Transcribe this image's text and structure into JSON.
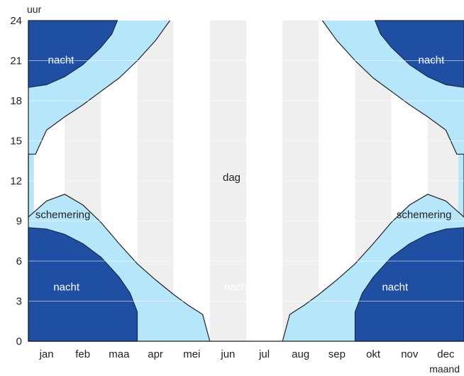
{
  "chart_data": {
    "type": "area",
    "xlabel": "maand",
    "ylabel": "uur",
    "categories": [
      "jan",
      "feb",
      "maa",
      "apr",
      "mei",
      "jun",
      "jul",
      "aug",
      "sep",
      "okt",
      "nov",
      "dec"
    ],
    "yticks": [
      "0",
      "3",
      "6",
      "9",
      "12",
      "15",
      "18",
      "21",
      "24"
    ],
    "ylim": [
      0,
      24
    ],
    "grid": "alternating light grey month columns, horizontal lines every 3 hours",
    "x_unit": "month index (0 = start of jan, 12 = end of dec)",
    "regions": [
      {
        "name": "nacht",
        "label": "nacht",
        "color": "#1f4fa3",
        "morning_end": [
          [
            0.0,
            8.5
          ],
          [
            0.5,
            8.5
          ],
          [
            1.0,
            8.2
          ],
          [
            1.5,
            7.5
          ],
          [
            2.0,
            6.3
          ],
          [
            2.5,
            4.5
          ],
          [
            2.8,
            3.2
          ],
          [
            3.0,
            2.0
          ],
          [
            3.1,
            0.0
          ]
        ],
        "evening_start": [
          [
            0.0,
            19.0
          ],
          [
            0.5,
            19.2
          ],
          [
            1.0,
            19.7
          ],
          [
            1.5,
            20.6
          ],
          [
            2.0,
            21.8
          ],
          [
            2.3,
            22.8
          ],
          [
            2.55,
            24.0
          ]
        ]
      },
      {
        "name": "schemering",
        "label": "schemering",
        "color": "#b6e6fa",
        "color_alt": "#a3d6ec",
        "morning_end": [
          [
            0.0,
            9.5
          ],
          [
            0.5,
            10.2
          ],
          [
            1.0,
            11.3
          ],
          [
            1.5,
            12.4
          ],
          [
            2.0,
            13.5
          ],
          [
            2.5,
            14.5
          ],
          [
            3.0,
            15.3
          ],
          [
            3.5,
            16.2
          ],
          [
            4.0,
            17.5
          ],
          [
            4.5,
            20.5
          ],
          [
            5.0,
            24.0
          ]
        ],
        "evening_start": [
          [
            0.0,
            14.0
          ],
          [
            0.5,
            15.5
          ],
          [
            1.0,
            16.4
          ],
          [
            1.5,
            17.2
          ],
          [
            2.0,
            18.0
          ],
          [
            2.5,
            19.0
          ],
          [
            3.0,
            20.2
          ],
          [
            3.5,
            21.5
          ],
          [
            4.0,
            23.0
          ],
          [
            4.3,
            24.0
          ]
        ]
      },
      {
        "name": "dag",
        "label": "dag",
        "color": "#ffffff",
        "midnight_sun_span": [
          5.0,
          7.0
        ]
      }
    ],
    "nacht_dip": [
      [
        3.0,
        2.5
      ],
      [
        3.5,
        4.5
      ],
      [
        4.0,
        4.0
      ],
      [
        4.5,
        2.0
      ],
      [
        4.85,
        0.0
      ]
    ],
    "labels": {
      "nacht_topleft": "nacht",
      "nacht_topright": "nacht",
      "nacht_bottomleft": "nacht",
      "nacht_bottomright": "nacht",
      "nacht_center": "nacht",
      "dag": "dag",
      "schemering_left": "schemering",
      "schemering_right": "schemering"
    }
  }
}
